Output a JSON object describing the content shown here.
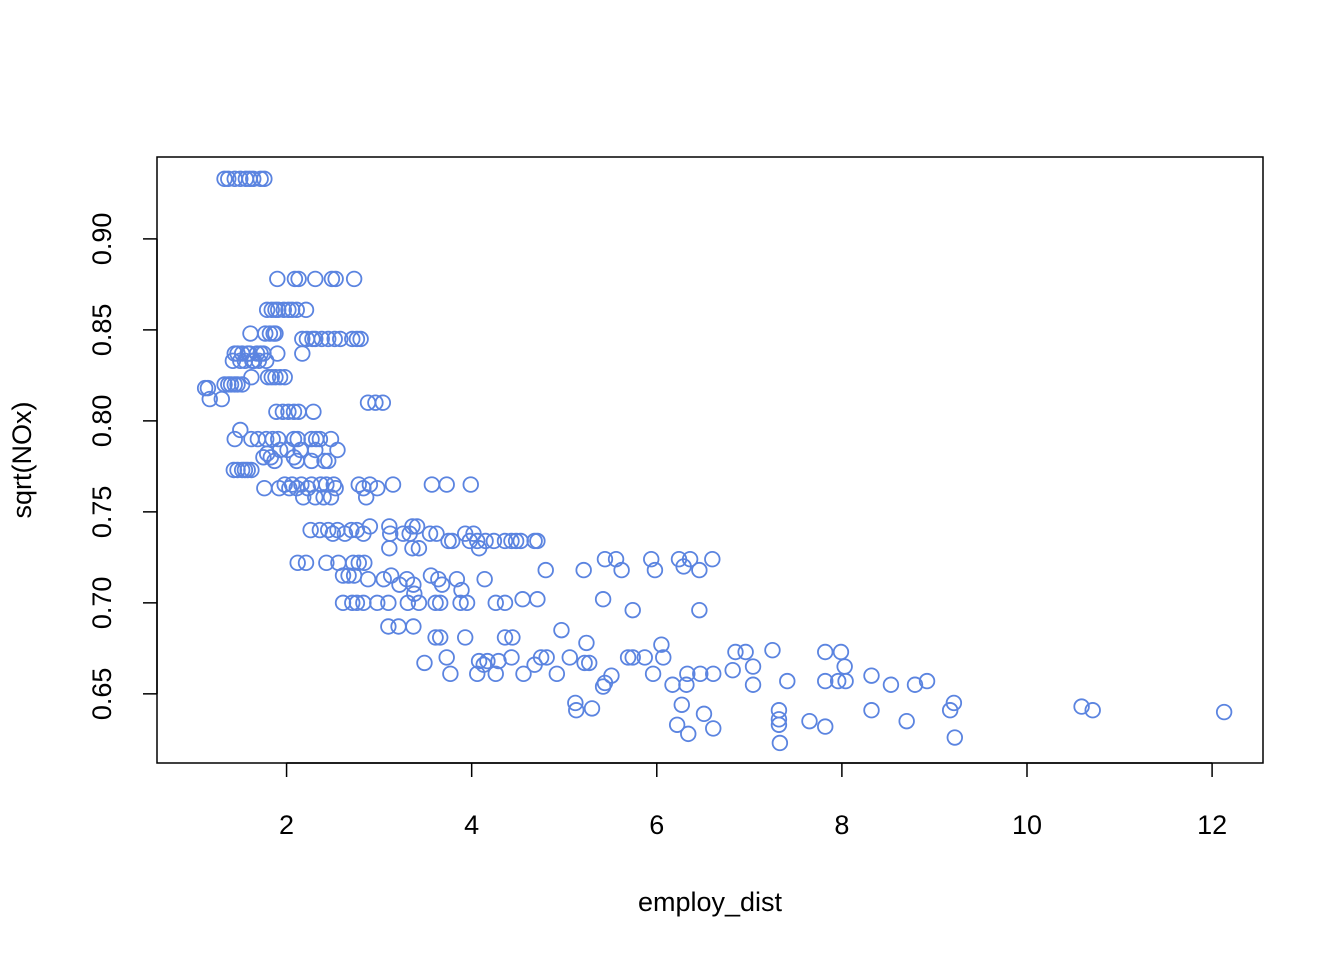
{
  "chart_data": {
    "type": "scatter",
    "title": "",
    "xlabel": "employ_dist",
    "ylabel": "sqrt(NOx)",
    "xlim": [
      0.6,
      12.55
    ],
    "ylim": [
      0.612,
      0.945
    ],
    "xticks": [
      2,
      4,
      6,
      8,
      10,
      12
    ],
    "yticks": [
      0.65,
      0.7,
      0.75,
      0.8,
      0.85,
      0.9
    ],
    "xtick_labels": [
      "2",
      "4",
      "6",
      "8",
      "10",
      "12"
    ],
    "ytick_labels": [
      "0.65",
      "0.70",
      "0.75",
      "0.80",
      "0.85",
      "0.90"
    ],
    "grid": false,
    "legend": "none",
    "marker": "open-circle",
    "point_color": "#5B84E0",
    "points": [
      [
        1.33,
        0.933
      ],
      [
        1.37,
        0.933
      ],
      [
        1.44,
        0.933
      ],
      [
        1.5,
        0.933
      ],
      [
        1.56,
        0.933
      ],
      [
        1.6,
        0.933
      ],
      [
        1.64,
        0.933
      ],
      [
        1.72,
        0.933
      ],
      [
        1.76,
        0.933
      ],
      [
        1.12,
        0.818
      ],
      [
        1.15,
        0.818
      ],
      [
        1.17,
        0.812
      ],
      [
        1.3,
        0.812
      ],
      [
        1.33,
        0.82
      ],
      [
        1.37,
        0.82
      ],
      [
        1.4,
        0.82
      ],
      [
        1.44,
        0.82
      ],
      [
        1.47,
        0.82
      ],
      [
        1.52,
        0.82
      ],
      [
        1.42,
        0.833
      ],
      [
        1.44,
        0.837
      ],
      [
        1.47,
        0.837
      ],
      [
        1.5,
        0.833
      ],
      [
        1.52,
        0.837
      ],
      [
        1.55,
        0.833
      ],
      [
        1.58,
        0.837
      ],
      [
        1.6,
        0.837
      ],
      [
        1.63,
        0.833
      ],
      [
        1.65,
        0.833
      ],
      [
        1.68,
        0.837
      ],
      [
        1.7,
        0.833
      ],
      [
        1.72,
        0.837
      ],
      [
        1.75,
        0.837
      ],
      [
        1.78,
        0.833
      ],
      [
        1.9,
        0.837
      ],
      [
        2.17,
        0.837
      ],
      [
        1.62,
        0.824
      ],
      [
        1.8,
        0.824
      ],
      [
        1.84,
        0.824
      ],
      [
        1.88,
        0.824
      ],
      [
        1.93,
        0.824
      ],
      [
        1.98,
        0.824
      ],
      [
        1.61,
        0.848
      ],
      [
        1.77,
        0.848
      ],
      [
        1.82,
        0.848
      ],
      [
        1.86,
        0.848
      ],
      [
        1.88,
        0.848
      ],
      [
        1.79,
        0.861
      ],
      [
        1.84,
        0.861
      ],
      [
        1.88,
        0.861
      ],
      [
        1.91,
        0.861
      ],
      [
        1.97,
        0.861
      ],
      [
        2.02,
        0.861
      ],
      [
        2.06,
        0.861
      ],
      [
        2.11,
        0.861
      ],
      [
        2.21,
        0.861
      ],
      [
        2.17,
        0.845
      ],
      [
        2.22,
        0.845
      ],
      [
        2.28,
        0.845
      ],
      [
        2.31,
        0.845
      ],
      [
        2.38,
        0.845
      ],
      [
        2.45,
        0.845
      ],
      [
        2.52,
        0.845
      ],
      [
        2.58,
        0.845
      ],
      [
        2.71,
        0.845
      ],
      [
        2.76,
        0.845
      ],
      [
        2.8,
        0.845
      ],
      [
        1.9,
        0.878
      ],
      [
        2.09,
        0.878
      ],
      [
        2.13,
        0.878
      ],
      [
        2.31,
        0.878
      ],
      [
        2.49,
        0.878
      ],
      [
        2.53,
        0.878
      ],
      [
        2.73,
        0.878
      ],
      [
        2.88,
        0.81
      ],
      [
        2.96,
        0.81
      ],
      [
        3.04,
        0.81
      ],
      [
        1.89,
        0.805
      ],
      [
        1.96,
        0.805
      ],
      [
        2.02,
        0.805
      ],
      [
        2.08,
        0.805
      ],
      [
        2.13,
        0.805
      ],
      [
        2.29,
        0.805
      ],
      [
        1.44,
        0.79
      ],
      [
        1.5,
        0.795
      ],
      [
        1.62,
        0.79
      ],
      [
        1.69,
        0.79
      ],
      [
        1.78,
        0.79
      ],
      [
        1.85,
        0.79
      ],
      [
        1.91,
        0.79
      ],
      [
        2.08,
        0.79
      ],
      [
        2.12,
        0.79
      ],
      [
        2.27,
        0.79
      ],
      [
        2.32,
        0.79
      ],
      [
        2.36,
        0.79
      ],
      [
        2.48,
        0.79
      ],
      [
        1.75,
        0.78
      ],
      [
        1.79,
        0.782
      ],
      [
        1.83,
        0.78
      ],
      [
        1.87,
        0.778
      ],
      [
        1.93,
        0.784
      ],
      [
        2.01,
        0.784
      ],
      [
        2.08,
        0.78
      ],
      [
        2.11,
        0.778
      ],
      [
        2.15,
        0.784
      ],
      [
        2.27,
        0.778
      ],
      [
        2.31,
        0.784
      ],
      [
        2.41,
        0.778
      ],
      [
        2.45,
        0.778
      ],
      [
        2.55,
        0.784
      ],
      [
        1.43,
        0.773
      ],
      [
        1.47,
        0.773
      ],
      [
        1.52,
        0.773
      ],
      [
        1.55,
        0.773
      ],
      [
        1.58,
        0.773
      ],
      [
        1.62,
        0.773
      ],
      [
        1.76,
        0.763
      ],
      [
        1.92,
        0.763
      ],
      [
        1.98,
        0.765
      ],
      [
        2.03,
        0.763
      ],
      [
        2.06,
        0.765
      ],
      [
        2.11,
        0.763
      ],
      [
        2.16,
        0.765
      ],
      [
        2.18,
        0.758
      ],
      [
        2.23,
        0.763
      ],
      [
        2.27,
        0.765
      ],
      [
        2.31,
        0.758
      ],
      [
        2.37,
        0.765
      ],
      [
        2.4,
        0.758
      ],
      [
        2.43,
        0.765
      ],
      [
        2.48,
        0.758
      ],
      [
        2.51,
        0.765
      ],
      [
        2.53,
        0.763
      ],
      [
        2.78,
        0.765
      ],
      [
        2.83,
        0.763
      ],
      [
        2.86,
        0.758
      ],
      [
        2.9,
        0.765
      ],
      [
        2.98,
        0.763
      ],
      [
        3.15,
        0.765
      ],
      [
        3.57,
        0.765
      ],
      [
        3.73,
        0.765
      ],
      [
        3.99,
        0.765
      ],
      [
        2.26,
        0.74
      ],
      [
        2.36,
        0.74
      ],
      [
        2.45,
        0.74
      ],
      [
        2.5,
        0.738
      ],
      [
        2.55,
        0.74
      ],
      [
        2.63,
        0.738
      ],
      [
        2.7,
        0.74
      ],
      [
        2.76,
        0.74
      ],
      [
        2.83,
        0.738
      ],
      [
        2.9,
        0.742
      ],
      [
        3.11,
        0.742
      ],
      [
        3.12,
        0.738
      ],
      [
        3.26,
        0.738
      ],
      [
        3.33,
        0.738
      ],
      [
        3.36,
        0.742
      ],
      [
        3.41,
        0.742
      ],
      [
        3.55,
        0.738
      ],
      [
        3.62,
        0.738
      ],
      [
        3.75,
        0.734
      ],
      [
        3.79,
        0.734
      ],
      [
        3.93,
        0.738
      ],
      [
        3.98,
        0.734
      ],
      [
        4.02,
        0.738
      ],
      [
        4.06,
        0.734
      ],
      [
        4.08,
        0.73
      ],
      [
        4.15,
        0.734
      ],
      [
        4.24,
        0.734
      ],
      [
        4.36,
        0.734
      ],
      [
        4.43,
        0.734
      ],
      [
        4.48,
        0.734
      ],
      [
        4.53,
        0.734
      ],
      [
        4.68,
        0.734
      ],
      [
        4.71,
        0.734
      ],
      [
        3.11,
        0.73
      ],
      [
        3.36,
        0.73
      ],
      [
        3.43,
        0.73
      ],
      [
        4.8,
        0.718
      ],
      [
        5.21,
        0.718
      ],
      [
        5.44,
        0.724
      ],
      [
        5.56,
        0.724
      ],
      [
        5.62,
        0.718
      ],
      [
        5.94,
        0.724
      ],
      [
        5.98,
        0.718
      ],
      [
        6.24,
        0.724
      ],
      [
        6.29,
        0.72
      ],
      [
        6.36,
        0.724
      ],
      [
        6.46,
        0.718
      ],
      [
        6.6,
        0.724
      ],
      [
        2.12,
        0.722
      ],
      [
        2.21,
        0.722
      ],
      [
        2.43,
        0.722
      ],
      [
        2.56,
        0.722
      ],
      [
        2.72,
        0.722
      ],
      [
        2.78,
        0.722
      ],
      [
        2.84,
        0.722
      ],
      [
        2.61,
        0.715
      ],
      [
        2.67,
        0.715
      ],
      [
        2.73,
        0.715
      ],
      [
        2.88,
        0.713
      ],
      [
        3.05,
        0.713
      ],
      [
        3.13,
        0.715
      ],
      [
        3.22,
        0.71
      ],
      [
        3.3,
        0.713
      ],
      [
        3.37,
        0.71
      ],
      [
        3.38,
        0.705
      ],
      [
        3.56,
        0.715
      ],
      [
        3.64,
        0.713
      ],
      [
        3.68,
        0.71
      ],
      [
        3.84,
        0.713
      ],
      [
        3.89,
        0.707
      ],
      [
        4.14,
        0.713
      ],
      [
        2.61,
        0.7
      ],
      [
        2.71,
        0.7
      ],
      [
        2.76,
        0.7
      ],
      [
        2.83,
        0.7
      ],
      [
        2.98,
        0.7
      ],
      [
        3.1,
        0.7
      ],
      [
        3.31,
        0.7
      ],
      [
        3.43,
        0.7
      ],
      [
        3.61,
        0.7
      ],
      [
        3.66,
        0.7
      ],
      [
        3.88,
        0.7
      ],
      [
        3.95,
        0.7
      ],
      [
        4.26,
        0.7
      ],
      [
        4.36,
        0.7
      ],
      [
        4.55,
        0.702
      ],
      [
        4.71,
        0.702
      ],
      [
        5.42,
        0.702
      ],
      [
        5.74,
        0.696
      ],
      [
        6.46,
        0.696
      ],
      [
        3.1,
        0.687
      ],
      [
        3.21,
        0.687
      ],
      [
        3.37,
        0.687
      ],
      [
        3.61,
        0.681
      ],
      [
        3.66,
        0.681
      ],
      [
        3.93,
        0.681
      ],
      [
        4.36,
        0.681
      ],
      [
        4.44,
        0.681
      ],
      [
        4.97,
        0.685
      ],
      [
        5.24,
        0.678
      ],
      [
        6.05,
        0.677
      ],
      [
        3.49,
        0.667
      ],
      [
        3.73,
        0.67
      ],
      [
        3.77,
        0.661
      ],
      [
        4.06,
        0.661
      ],
      [
        4.08,
        0.668
      ],
      [
        4.13,
        0.666
      ],
      [
        4.17,
        0.668
      ],
      [
        4.26,
        0.661
      ],
      [
        4.29,
        0.668
      ],
      [
        4.43,
        0.67
      ],
      [
        4.56,
        0.661
      ],
      [
        4.68,
        0.666
      ],
      [
        4.75,
        0.67
      ],
      [
        4.81,
        0.67
      ],
      [
        4.92,
        0.661
      ],
      [
        5.06,
        0.67
      ],
      [
        5.22,
        0.667
      ],
      [
        5.27,
        0.667
      ],
      [
        5.69,
        0.67
      ],
      [
        5.74,
        0.67
      ],
      [
        5.87,
        0.67
      ],
      [
        6.07,
        0.67
      ],
      [
        5.42,
        0.654
      ],
      [
        5.44,
        0.656
      ],
      [
        5.51,
        0.66
      ],
      [
        5.96,
        0.661
      ],
      [
        6.17,
        0.655
      ],
      [
        6.32,
        0.655
      ],
      [
        6.33,
        0.661
      ],
      [
        6.47,
        0.661
      ],
      [
        6.61,
        0.661
      ],
      [
        6.82,
        0.663
      ],
      [
        6.85,
        0.673
      ],
      [
        6.96,
        0.673
      ],
      [
        7.04,
        0.665
      ],
      [
        7.04,
        0.655
      ],
      [
        7.25,
        0.674
      ],
      [
        7.41,
        0.657
      ],
      [
        5.12,
        0.645
      ],
      [
        5.13,
        0.641
      ],
      [
        5.3,
        0.642
      ],
      [
        6.27,
        0.644
      ],
      [
        6.22,
        0.633
      ],
      [
        6.34,
        0.628
      ],
      [
        6.51,
        0.639
      ],
      [
        6.61,
        0.631
      ],
      [
        7.32,
        0.641
      ],
      [
        7.32,
        0.636
      ],
      [
        7.32,
        0.633
      ],
      [
        7.33,
        0.623
      ],
      [
        7.65,
        0.635
      ],
      [
        7.82,
        0.632
      ],
      [
        7.82,
        0.657
      ],
      [
        7.82,
        0.673
      ],
      [
        7.96,
        0.657
      ],
      [
        7.99,
        0.673
      ],
      [
        8.03,
        0.665
      ],
      [
        8.04,
        0.657
      ],
      [
        8.32,
        0.66
      ],
      [
        8.53,
        0.655
      ],
      [
        8.79,
        0.655
      ],
      [
        8.92,
        0.657
      ],
      [
        9.21,
        0.645
      ],
      [
        8.32,
        0.641
      ],
      [
        8.7,
        0.635
      ],
      [
        9.17,
        0.641
      ],
      [
        9.22,
        0.626
      ],
      [
        10.59,
        0.643
      ],
      [
        10.71,
        0.641
      ],
      [
        12.13,
        0.64
      ]
    ]
  }
}
